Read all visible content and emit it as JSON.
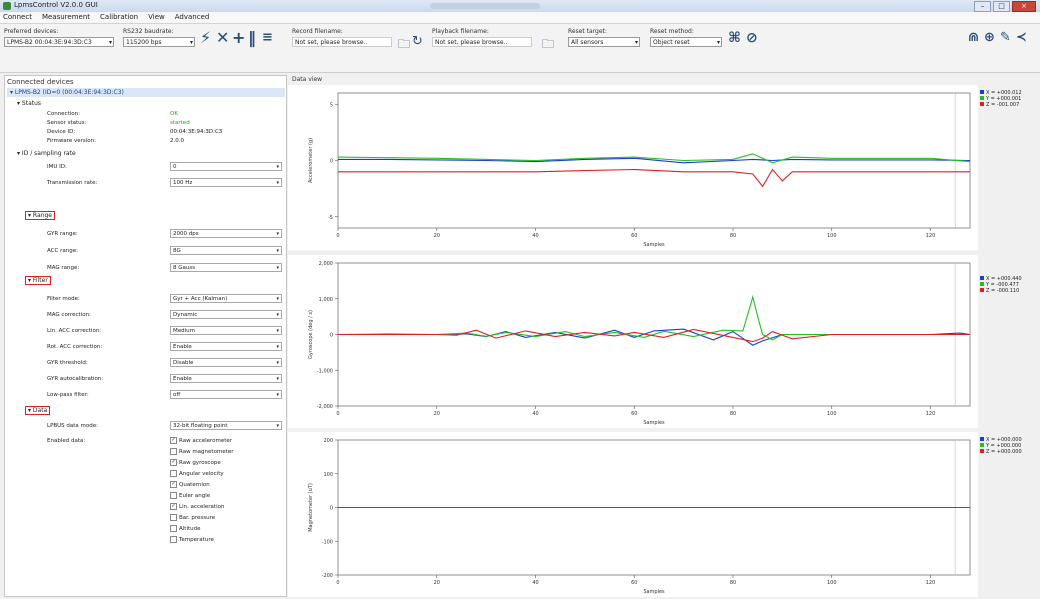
{
  "window": {
    "title": "LpmsControl V2.0.0 GUI",
    "buttons": [
      "–",
      "□",
      "×"
    ]
  },
  "menu": [
    "Connect",
    "Measurement",
    "Calibration",
    "View",
    "Advanced"
  ],
  "toolbar": {
    "preferred_devices_label": "Preferred devices:",
    "preferred_devices_value": "LPMS-B2 00:04:3E:94:3D:C3",
    "baudrate_label": "RS232 baudrate:",
    "baudrate_value": "115200 bps",
    "record_label": "Record filename:",
    "record_value": "Not set, please browse..",
    "playback_label": "Playback filename:",
    "playback_value": "Not set, please browse..",
    "reset_target_label": "Reset target:",
    "reset_target_value": "All sensors",
    "reset_method_label": "Reset method:",
    "reset_method_value": "Object reset"
  },
  "panel": {
    "title": "Connected devices",
    "device": "LPMS-B2 (ID=0 (00:04:3E:94:3D:C3)",
    "status_section": "Status",
    "status_rows": [
      {
        "label": "Connection:",
        "value": "OK"
      },
      {
        "label": "Sensor status:",
        "value": "started"
      },
      {
        "label": "Device ID:",
        "value": "00:04:3E:94:3D:C3"
      },
      {
        "label": "Firmware version:",
        "value": "2.0.0"
      }
    ],
    "id_section": "ID / sampling rate",
    "id_rows": [
      {
        "label": "IMU ID:",
        "value": "0"
      },
      {
        "label": "Transmission rate:",
        "value": "100 Hz"
      }
    ],
    "range_section": "Range",
    "range_rows": [
      {
        "label": "GYR range:",
        "value": "2000 dps"
      },
      {
        "label": "ACC range:",
        "value": "8G"
      },
      {
        "label": "MAG range:",
        "value": "8 Gauss"
      }
    ],
    "filter_section": "Filter",
    "filter_rows": [
      {
        "label": "Filter mode:",
        "value": "Gyr + Acc (Kalman)"
      },
      {
        "label": "MAG correction:",
        "value": "Dynamic"
      },
      {
        "label": "Lin. ACC correction:",
        "value": "Medium"
      },
      {
        "label": "Rot. ACC correction:",
        "value": "Enable"
      },
      {
        "label": "GYR threshold:",
        "value": "Disable"
      },
      {
        "label": "GYR autocalibration:",
        "value": "Enable"
      },
      {
        "label": "Low-pass filter:",
        "value": "off"
      }
    ],
    "data_section": "Data",
    "data_mode_label": "LPBUS data mode:",
    "data_mode_value": "32-bit floating point",
    "enabled_label": "Enabled data:",
    "enabled_items": [
      {
        "label": "Raw accelerometer",
        "checked": true
      },
      {
        "label": "Raw magnetometer",
        "checked": false
      },
      {
        "label": "Raw gyroscope",
        "checked": true
      },
      {
        "label": "Angular velocity",
        "checked": false
      },
      {
        "label": "Quaternion",
        "checked": true
      },
      {
        "label": "Euler angle",
        "checked": false
      },
      {
        "label": "Lin. acceleration",
        "checked": true
      },
      {
        "label": "Bar. pressure",
        "checked": false
      },
      {
        "label": "Altitude",
        "checked": false
      },
      {
        "label": "Temperature",
        "checked": false
      }
    ]
  },
  "data_view_label": "Data view",
  "chart_data": [
    {
      "type": "line",
      "ylabel": "Accelerometer (g)",
      "xlabel": "Samples",
      "xlim": [
        0,
        128
      ],
      "ylim": [
        -6,
        6
      ],
      "yticks": [
        -5,
        0,
        5
      ],
      "xticks": [
        0,
        20,
        40,
        60,
        80,
        100,
        120
      ],
      "legend": [
        "X = +000.012",
        "Y = +000.001",
        "Z = -001.007"
      ],
      "series": [
        {
          "name": "X",
          "color": "#1a3bd8",
          "x": [
            0,
            10,
            20,
            30,
            40,
            50,
            60,
            70,
            80,
            84,
            88,
            92,
            100,
            110,
            120,
            128
          ],
          "values": [
            0.1,
            0.1,
            0.05,
            0.0,
            -0.1,
            0.1,
            0.2,
            -0.2,
            0.0,
            0.1,
            0.0,
            0.1,
            0.05,
            0.05,
            0.05,
            0.0
          ]
        },
        {
          "name": "Y",
          "color": "#22c022",
          "x": [
            0,
            10,
            20,
            30,
            40,
            50,
            60,
            70,
            80,
            84,
            88,
            92,
            100,
            110,
            120,
            128
          ],
          "values": [
            0.3,
            0.25,
            0.2,
            0.1,
            0.0,
            0.2,
            0.3,
            0.0,
            0.1,
            0.6,
            -0.2,
            0.3,
            0.2,
            0.2,
            0.2,
            -0.1
          ]
        },
        {
          "name": "Z",
          "color": "#e02020",
          "x": [
            0,
            10,
            20,
            30,
            40,
            50,
            60,
            70,
            80,
            84,
            86,
            88,
            90,
            92,
            100,
            110,
            120,
            128
          ],
          "values": [
            -1.0,
            -1.0,
            -1.0,
            -1.0,
            -1.0,
            -0.9,
            -0.8,
            -1.0,
            -1.0,
            -1.2,
            -2.3,
            -0.8,
            -1.8,
            -1.0,
            -1.0,
            -1.0,
            -1.0,
            -1.0
          ]
        }
      ]
    },
    {
      "type": "line",
      "ylabel": "Gyroscope (deg / s)",
      "xlabel": "Samples",
      "xlim": [
        0,
        128
      ],
      "ylim": [
        -2000,
        2000
      ],
      "yticks": [
        -2000,
        -1000,
        0,
        1000,
        2000
      ],
      "ytick_labels": [
        "-2,000",
        "-1,000",
        "0",
        "1,000",
        "2,000"
      ],
      "xticks": [
        0,
        20,
        40,
        60,
        80,
        100,
        120
      ],
      "legend": [
        "X = +000.440",
        "Y = -000.477",
        "Z = -000.110"
      ],
      "series": [
        {
          "name": "X",
          "color": "#1a3bd8",
          "x": [
            0,
            10,
            20,
            26,
            30,
            34,
            38,
            44,
            50,
            56,
            60,
            64,
            70,
            76,
            80,
            84,
            86,
            90,
            100,
            110,
            120,
            126,
            128
          ],
          "values": [
            0,
            10,
            0,
            20,
            -60,
            80,
            -80,
            60,
            -100,
            120,
            -80,
            100,
            150,
            -150,
            80,
            -300,
            -180,
            0,
            0,
            0,
            0,
            40,
            0
          ]
        },
        {
          "name": "Y",
          "color": "#22c022",
          "x": [
            0,
            10,
            20,
            26,
            30,
            34,
            40,
            46,
            50,
            56,
            62,
            66,
            72,
            78,
            82,
            84,
            85,
            86,
            88,
            90,
            100,
            110,
            120,
            128
          ],
          "values": [
            0,
            0,
            0,
            40,
            -50,
            60,
            -60,
            80,
            -60,
            60,
            -80,
            90,
            -60,
            120,
            100,
            1050,
            500,
            0,
            -150,
            0,
            0,
            0,
            0,
            0
          ]
        },
        {
          "name": "Z",
          "color": "#e02020",
          "x": [
            0,
            10,
            20,
            24,
            28,
            32,
            38,
            44,
            50,
            56,
            60,
            66,
            72,
            80,
            84,
            86,
            88,
            92,
            100,
            110,
            120,
            128
          ],
          "values": [
            0,
            0,
            0,
            -20,
            120,
            -100,
            100,
            -60,
            60,
            -40,
            60,
            -80,
            140,
            -80,
            -200,
            -100,
            80,
            -120,
            0,
            0,
            0,
            0
          ]
        }
      ]
    },
    {
      "type": "line",
      "ylabel": "Magnetometer (uT)",
      "xlabel": "Samples",
      "xlim": [
        0,
        128
      ],
      "ylim": [
        -200,
        200
      ],
      "yticks": [
        -200,
        -100,
        0,
        100,
        200
      ],
      "xticks": [
        0,
        20,
        40,
        60,
        80,
        100,
        120
      ],
      "legend": [
        "X = +000.000",
        "Y = +000.000",
        "Z = +000.000"
      ],
      "series": [
        {
          "name": "X",
          "color": "#1a3bd8",
          "x": [
            0,
            128
          ],
          "values": [
            0,
            0
          ]
        },
        {
          "name": "Y",
          "color": "#22c022",
          "x": [
            0,
            128
          ],
          "values": [
            0,
            0
          ]
        },
        {
          "name": "Z",
          "color": "#e02020",
          "x": [
            0,
            128
          ],
          "values": [
            0,
            0
          ]
        }
      ]
    }
  ]
}
